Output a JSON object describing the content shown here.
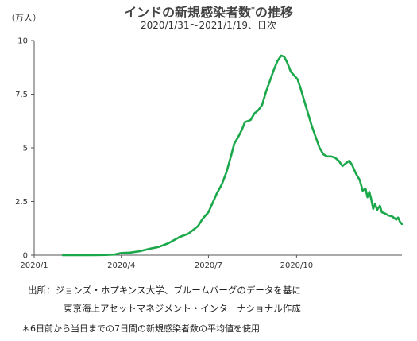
{
  "header": {
    "title": "インドの新規感染者数",
    "title_mark": "*",
    "title_suffix": "の推移",
    "subtitle": "2020/1/31〜2021/1/19、日次",
    "unit": "（万人）"
  },
  "footer": {
    "source_line1": "出所：ジョンズ・ホプキンス大学、ブルームバーグのデータを基に",
    "source_line2": "東京海上アセットマネジメント・インターナショナル作成",
    "note": "＊6日前から当日までの7日間の新規感染者数の平均値を使用"
  },
  "chart_data": {
    "type": "line",
    "title": "インドの新規感染者数*の推移",
    "subtitle": "2020/1/31〜2021/1/19、日次",
    "ylabel": "（万人）",
    "ylim": [
      0,
      10
    ],
    "yticks": [
      0,
      2.5,
      5,
      7.5,
      10
    ],
    "ytick_labels": [
      "0",
      "2.5",
      "5",
      "7.5",
      "10"
    ],
    "xlim": [
      "2020-01-01",
      "2021-01-19"
    ],
    "xticks": [
      "2020-01-01",
      "2020-04-01",
      "2020-07-01",
      "2020-10-01"
    ],
    "xtick_labels": [
      "2020/1",
      "2020/4",
      "2020/7",
      "2020/10"
    ],
    "grid": false,
    "color": "#1aa84a",
    "series": [
      {
        "points": [
          [
            "2020-01-31",
            0
          ],
          [
            "2020-03-01",
            0
          ],
          [
            "2020-03-15",
            0.01
          ],
          [
            "2020-03-25",
            0.03
          ],
          [
            "2020-04-01",
            0.1
          ],
          [
            "2020-04-10",
            0.12
          ],
          [
            "2020-04-20",
            0.18
          ],
          [
            "2020-05-01",
            0.3
          ],
          [
            "2020-05-10",
            0.38
          ],
          [
            "2020-05-20",
            0.55
          ],
          [
            "2020-06-01",
            0.85
          ],
          [
            "2020-06-10",
            1.0
          ],
          [
            "2020-06-20",
            1.35
          ],
          [
            "2020-06-25",
            1.7
          ],
          [
            "2020-07-01",
            2.0
          ],
          [
            "2020-07-05",
            2.4
          ],
          [
            "2020-07-10",
            2.9
          ],
          [
            "2020-07-15",
            3.3
          ],
          [
            "2020-07-20",
            3.9
          ],
          [
            "2020-07-25",
            4.7
          ],
          [
            "2020-07-28",
            5.2
          ],
          [
            "2020-08-01",
            5.5
          ],
          [
            "2020-08-05",
            5.85
          ],
          [
            "2020-08-08",
            6.2
          ],
          [
            "2020-08-11",
            6.25
          ],
          [
            "2020-08-14",
            6.3
          ],
          [
            "2020-08-18",
            6.6
          ],
          [
            "2020-08-22",
            6.75
          ],
          [
            "2020-08-26",
            7.0
          ],
          [
            "2020-08-30",
            7.6
          ],
          [
            "2020-09-03",
            8.1
          ],
          [
            "2020-09-07",
            8.6
          ],
          [
            "2020-09-11",
            9.05
          ],
          [
            "2020-09-15",
            9.3
          ],
          [
            "2020-09-18",
            9.25
          ],
          [
            "2020-09-21",
            9.0
          ],
          [
            "2020-09-25",
            8.55
          ],
          [
            "2020-09-29",
            8.35
          ],
          [
            "2020-10-02",
            8.2
          ],
          [
            "2020-10-05",
            7.8
          ],
          [
            "2020-10-09",
            7.2
          ],
          [
            "2020-10-13",
            6.6
          ],
          [
            "2020-10-17",
            6.0
          ],
          [
            "2020-10-21",
            5.5
          ],
          [
            "2020-10-25",
            5.0
          ],
          [
            "2020-10-29",
            4.7
          ],
          [
            "2020-11-02",
            4.6
          ],
          [
            "2020-11-06",
            4.6
          ],
          [
            "2020-11-10",
            4.55
          ],
          [
            "2020-11-14",
            4.4
          ],
          [
            "2020-11-18",
            4.15
          ],
          [
            "2020-11-22",
            4.3
          ],
          [
            "2020-11-25",
            4.4
          ],
          [
            "2020-11-28",
            4.2
          ],
          [
            "2020-12-02",
            3.8
          ],
          [
            "2020-12-06",
            3.5
          ],
          [
            "2020-12-09",
            3.0
          ],
          [
            "2020-12-12",
            3.1
          ],
          [
            "2020-12-14",
            2.7
          ],
          [
            "2020-12-16",
            2.95
          ],
          [
            "2020-12-18",
            2.6
          ],
          [
            "2020-12-20",
            2.15
          ],
          [
            "2020-12-22",
            2.4
          ],
          [
            "2020-12-24",
            2.1
          ],
          [
            "2020-12-27",
            2.3
          ],
          [
            "2020-12-29",
            2.0
          ],
          [
            "2021-01-01",
            1.95
          ],
          [
            "2021-01-05",
            1.85
          ],
          [
            "2021-01-09",
            1.8
          ],
          [
            "2021-01-13",
            1.65
          ],
          [
            "2021-01-15",
            1.75
          ],
          [
            "2021-01-17",
            1.55
          ],
          [
            "2021-01-19",
            1.45
          ]
        ]
      }
    ]
  }
}
